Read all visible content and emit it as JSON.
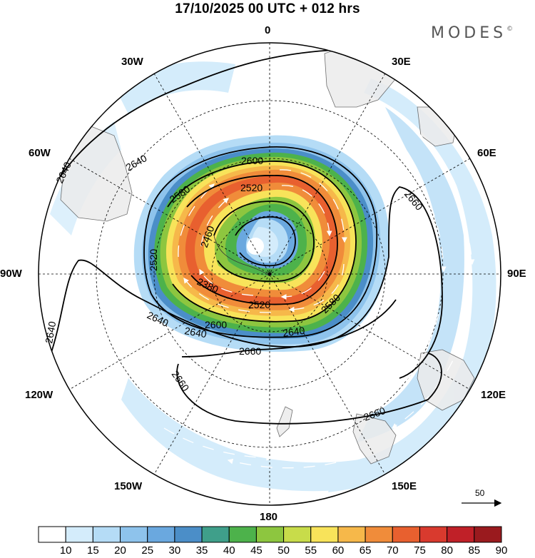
{
  "header": {
    "title": "17/10/2025  00 UTC  + 012 hrs",
    "brand": "MODES",
    "brand_mark": "©"
  },
  "longitude_labels": [
    "0",
    "30E",
    "60E",
    "90E",
    "120E",
    "150E",
    "180",
    "150W",
    "120W",
    "90W",
    "60W",
    "30W"
  ],
  "contour_labels": [
    "2640",
    "2640",
    "2640",
    "2640",
    "2640",
    "2640",
    "2660",
    "2660",
    "2660",
    "2660",
    "2600",
    "2600",
    "2580",
    "2580",
    "2520",
    "2520",
    "2520",
    "2460",
    "2380"
  ],
  "wind_reference": {
    "label": "50"
  },
  "colorbar": {
    "ticks": [
      "10",
      "15",
      "20",
      "25",
      "30",
      "35",
      "40",
      "45",
      "50",
      "55",
      "60",
      "65",
      "70",
      "75",
      "80",
      "85",
      "90"
    ],
    "colors": [
      "#ffffff",
      "#d4ecfb",
      "#b5dcf6",
      "#8ec3ec",
      "#6aa8df",
      "#4b8ec8",
      "#3f9f8a",
      "#4db24b",
      "#8dc63f",
      "#c8dc4a",
      "#f8e35a",
      "#f6b84a",
      "#f08c3a",
      "#e8602f",
      "#d93a2e",
      "#c02028",
      "#9a1a1e"
    ]
  }
}
